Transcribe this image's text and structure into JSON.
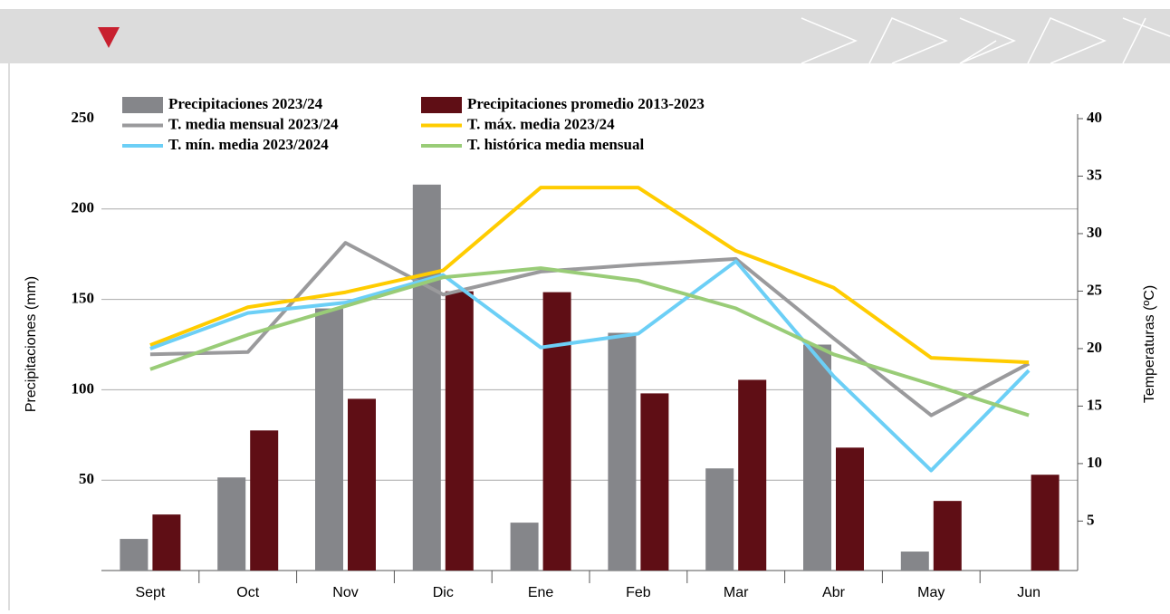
{
  "chart_data": {
    "type": "bar",
    "categories": [
      "Sept",
      "Oct",
      "Nov",
      "Dic",
      "Ene",
      "Feb",
      "Mar",
      "Abr",
      "May",
      "Jun"
    ],
    "y_label": "Precipitaciones (mm)",
    "y2_label": "Temperaturas (ºC)",
    "ylim": [
      0,
      250
    ],
    "yticks": [
      50,
      100,
      150,
      200,
      250
    ],
    "y2lim": [
      0.7,
      40
    ],
    "y2ticks": [
      5,
      10,
      15,
      20,
      25,
      30,
      35,
      40
    ],
    "grid": true,
    "series": [
      {
        "name": "Precipitaciones 2023/24",
        "type": "bar",
        "color": "#85868a",
        "values": [
          17.5,
          51.5,
          145,
          213.5,
          26.5,
          131.5,
          56.5,
          125,
          10.5,
          null
        ]
      },
      {
        "name": "Precipitaciones promedio 2013-2023",
        "type": "bar",
        "color": "#5f0e15",
        "values": [
          31,
          77.5,
          95,
          154.5,
          154,
          98,
          105.5,
          68,
          38.5,
          53
        ]
      },
      {
        "name": "T. media mensual 2023/24",
        "type": "line",
        "axis": "y2",
        "color": "#9a9a9c",
        "values": [
          19.5,
          19.7,
          29.2,
          24.7,
          26.7,
          27.3,
          27.8,
          20.9,
          14.2,
          18.7
        ]
      },
      {
        "name": "T. máx. media 2023/24",
        "type": "line",
        "axis": "y2",
        "color": "#ffcc00",
        "values": [
          20.3,
          23.6,
          24.9,
          26.8,
          34.0,
          34.0,
          28.5,
          25.3,
          19.2,
          18.8
        ]
      },
      {
        "name": "T. mín. media 2023/2024",
        "type": "line",
        "axis": "y2",
        "color": "#6ccff6",
        "values": [
          20.0,
          23.1,
          24.0,
          26.4,
          20.1,
          21.3,
          27.6,
          17.6,
          9.4,
          18.1
        ]
      },
      {
        "name": "T. histórica media mensual",
        "type": "line",
        "axis": "y2",
        "color": "#99cc77",
        "values": [
          18.2,
          21.2,
          23.7,
          26.2,
          27.0,
          25.9,
          23.5,
          19.5,
          16.9,
          14.2
        ]
      }
    ]
  }
}
